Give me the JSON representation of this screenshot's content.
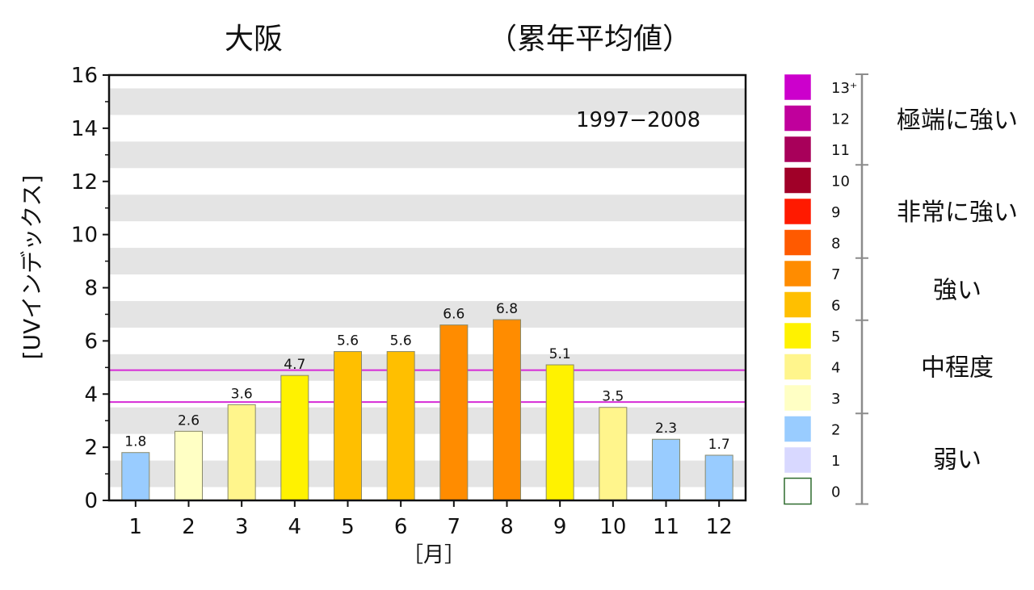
{
  "chart_data": {
    "type": "bar",
    "title_left": "大阪",
    "title_right": "（累年平均値）",
    "period": "1997−2008",
    "ylabel": "[UVインデックス]",
    "xlabel": "［月］",
    "ylim": [
      0,
      16
    ],
    "yticks": [
      "0",
      "2",
      "4",
      "6",
      "8",
      "10",
      "12",
      "14",
      "16"
    ],
    "categories": [
      "1",
      "2",
      "3",
      "4",
      "5",
      "6",
      "7",
      "8",
      "9",
      "10",
      "11",
      "12"
    ],
    "values": [
      1.8,
      2.6,
      3.6,
      4.7,
      5.6,
      5.6,
      6.6,
      6.8,
      5.1,
      3.5,
      2.3,
      1.7
    ],
    "value_labels": [
      "1.8",
      "2.6",
      "3.6",
      "4.7",
      "5.6",
      "5.6",
      "6.6",
      "6.8",
      "5.1",
      "3.5",
      "2.3",
      "1.7"
    ],
    "reference_lines": [
      {
        "value": 4.9,
        "color": "#d62bd6"
      },
      {
        "value": 3.7,
        "color": "#d62bd6"
      }
    ],
    "grid": "alternating-bands",
    "legend": {
      "placement": "right",
      "levels": [
        {
          "label": "13⁺",
          "level": 13,
          "color": "#cc00cc"
        },
        {
          "label": "12",
          "level": 12,
          "color": "#c0009c"
        },
        {
          "label": "11",
          "level": 11,
          "color": "#a8005a"
        },
        {
          "label": "10",
          "level": 10,
          "color": "#a00028"
        },
        {
          "label": "9",
          "level": 9,
          "color": "#ff1a00"
        },
        {
          "label": "8",
          "level": 8,
          "color": "#ff5a00"
        },
        {
          "label": "7",
          "level": 7,
          "color": "#ff8c00"
        },
        {
          "label": "6",
          "level": 6,
          "color": "#ffbf00"
        },
        {
          "label": "5",
          "level": 5,
          "color": "#fff200"
        },
        {
          "label": "4",
          "level": 4,
          "color": "#fff58c"
        },
        {
          "label": "3",
          "level": 3,
          "color": "#ffffc4"
        },
        {
          "label": "2",
          "level": 2,
          "color": "#99ccff"
        },
        {
          "label": "1",
          "level": 1,
          "color": "#d8d8ff"
        },
        {
          "label": "0",
          "level": 0,
          "color": "#ffffff"
        }
      ],
      "categories": [
        {
          "label": "極端に強い",
          "from": 11,
          "to": 13
        },
        {
          "label": "非常に強い",
          "from": 8,
          "to": 10
        },
        {
          "label": "強い",
          "from": 6,
          "to": 7
        },
        {
          "label": "中程度",
          "from": 3,
          "to": 5
        },
        {
          "label": "弱い",
          "from": 0,
          "to": 2
        }
      ]
    }
  }
}
